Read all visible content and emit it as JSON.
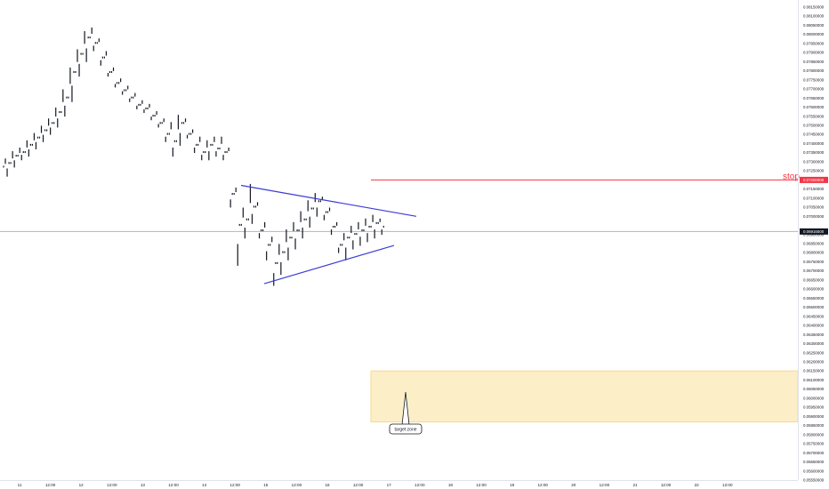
{
  "chart_data": {
    "type": "bar",
    "title": "",
    "xlabel": "",
    "ylabel": "",
    "ylim": [
      0.0555,
      0.0815
    ],
    "y_ticks": [
      "0.08150000",
      "0.08100000",
      "0.08050000",
      "0.08000000",
      "0.07950000",
      "0.07900000",
      "0.07850000",
      "0.07800000",
      "0.07750000",
      "0.07700000",
      "0.07650000",
      "0.07600000",
      "0.07550000",
      "0.07500000",
      "0.07450000",
      "0.07400000",
      "0.07350000",
      "0.07300000",
      "0.07250000",
      "0.07150000",
      "0.07100000",
      "0.07050000",
      "0.07000000",
      "0.06900000",
      "0.06850000",
      "0.06800000",
      "0.06750000",
      "0.06700000",
      "0.06650000",
      "0.06600000",
      "0.06550000",
      "0.06500000",
      "0.06450000",
      "0.06400000",
      "0.06350000",
      "0.06300000",
      "0.06250000",
      "0.06200000",
      "0.06150000",
      "0.06100000",
      "0.06050000",
      "0.06000000",
      "0.05950000",
      "0.05900000",
      "0.05850000",
      "0.05800000",
      "0.05750000",
      "0.05700000",
      "0.05650000",
      "0.05600000",
      "0.05550000"
    ],
    "x_ticks": [
      "11",
      "12:00",
      "12",
      "12:00",
      "13",
      "12:00",
      "14",
      "12:00",
      "15",
      "12:00",
      "16",
      "12:00",
      "17",
      "12:00",
      "18",
      "12:00",
      "19",
      "12:00",
      "20",
      "12:00",
      "21",
      "12:00",
      "22",
      "12:00"
    ],
    "ohlc": [
      [
        0.0727,
        0.0731,
        0.0722,
        0.0729
      ],
      [
        0.0729,
        0.0735,
        0.0727,
        0.0733
      ],
      [
        0.0733,
        0.0737,
        0.0731,
        0.0735
      ],
      [
        0.0735,
        0.0741,
        0.0733,
        0.0739
      ],
      [
        0.0739,
        0.0745,
        0.0737,
        0.0743
      ],
      [
        0.0743,
        0.0749,
        0.0741,
        0.0747
      ],
      [
        0.0747,
        0.0753,
        0.0745,
        0.0751
      ],
      [
        0.0751,
        0.0759,
        0.0749,
        0.0757
      ],
      [
        0.0757,
        0.0769,
        0.0755,
        0.0765
      ],
      [
        0.0765,
        0.0781,
        0.0763,
        0.0779
      ],
      [
        0.0779,
        0.0791,
        0.0777,
        0.0789
      ],
      [
        0.0789,
        0.0801,
        0.0785,
        0.0798
      ],
      [
        0.0798,
        0.0803,
        0.0791,
        0.0795
      ],
      [
        0.0795,
        0.0797,
        0.0783,
        0.0787
      ],
      [
        0.0787,
        0.079,
        0.0777,
        0.0779
      ],
      [
        0.0779,
        0.0781,
        0.0771,
        0.0773
      ],
      [
        0.0773,
        0.0775,
        0.0767,
        0.0769
      ],
      [
        0.0769,
        0.0771,
        0.0763,
        0.0765
      ],
      [
        0.0765,
        0.0767,
        0.0759,
        0.0761
      ],
      [
        0.0761,
        0.0763,
        0.0757,
        0.0759
      ],
      [
        0.0759,
        0.0761,
        0.0753,
        0.0755
      ],
      [
        0.0755,
        0.0757,
        0.0749,
        0.0751
      ],
      [
        0.0751,
        0.0753,
        0.0741,
        0.0745
      ],
      [
        0.0745,
        0.0751,
        0.0733,
        0.0741
      ],
      [
        0.0741,
        0.0755,
        0.0739,
        0.0751
      ],
      [
        0.0751,
        0.0753,
        0.0743,
        0.0745
      ],
      [
        0.0745,
        0.0747,
        0.0735,
        0.0739
      ],
      [
        0.0739,
        0.0743,
        0.0731,
        0.0735
      ],
      [
        0.0735,
        0.0741,
        0.0731,
        0.0739
      ],
      [
        0.0739,
        0.0743,
        0.0733,
        0.0737
      ],
      [
        0.0737,
        0.0743,
        0.0731,
        0.0735
      ],
      [
        0.0735,
        0.0737,
        0.0705,
        0.0712
      ],
      [
        0.0712,
        0.0715,
        0.0673,
        0.0695
      ],
      [
        0.0695,
        0.0704,
        0.0688,
        0.0698
      ],
      [
        0.0698,
        0.0717,
        0.0696,
        0.0705
      ],
      [
        0.0705,
        0.0707,
        0.0688,
        0.0692
      ],
      [
        0.0692,
        0.0696,
        0.0676,
        0.0684
      ],
      [
        0.0684,
        0.0688,
        0.0662,
        0.0674
      ],
      [
        0.0674,
        0.0684,
        0.0668,
        0.068
      ],
      [
        0.068,
        0.0692,
        0.0676,
        0.0688
      ],
      [
        0.0688,
        0.0696,
        0.0682,
        0.0692
      ],
      [
        0.0692,
        0.0702,
        0.0688,
        0.0698
      ],
      [
        0.0698,
        0.0708,
        0.0694,
        0.0704
      ],
      [
        0.0704,
        0.0712,
        0.07,
        0.0708
      ],
      [
        0.0708,
        0.071,
        0.0698,
        0.0702
      ],
      [
        0.0702,
        0.0704,
        0.069,
        0.0694
      ],
      [
        0.0694,
        0.0696,
        0.068,
        0.0684
      ],
      [
        0.0684,
        0.069,
        0.0676,
        0.0688
      ],
      [
        0.0688,
        0.0694,
        0.0682,
        0.069
      ],
      [
        0.069,
        0.0696,
        0.0684,
        0.0692
      ],
      [
        0.0692,
        0.0698,
        0.0686,
        0.0694
      ],
      [
        0.0694,
        0.07,
        0.0688,
        0.0696
      ],
      [
        0.0696,
        0.0698,
        0.069,
        0.0694
      ]
    ],
    "current_price": "0.06916500",
    "stop_level": "0.07200000",
    "annotations": {
      "stop": {
        "label": "stop",
        "y": 0.072,
        "color": "#f23645"
      },
      "target_zone": {
        "label": "target zone",
        "y_top": 0.0615,
        "y_bottom": 0.0587,
        "color": "#fcefc8"
      },
      "triangle_upper": [
        [
          7,
          0.0717
        ],
        [
          10,
          0.07
        ]
      ],
      "triangle_lower": [
        [
          7,
          0.0663
        ],
        [
          10,
          0.0684
        ]
      ]
    },
    "grid": false,
    "colors": {
      "candles": "#131722",
      "trend": "#3b3bd9",
      "stop": "#f23645",
      "zone": "#f7d98a",
      "price": "#000000"
    }
  }
}
